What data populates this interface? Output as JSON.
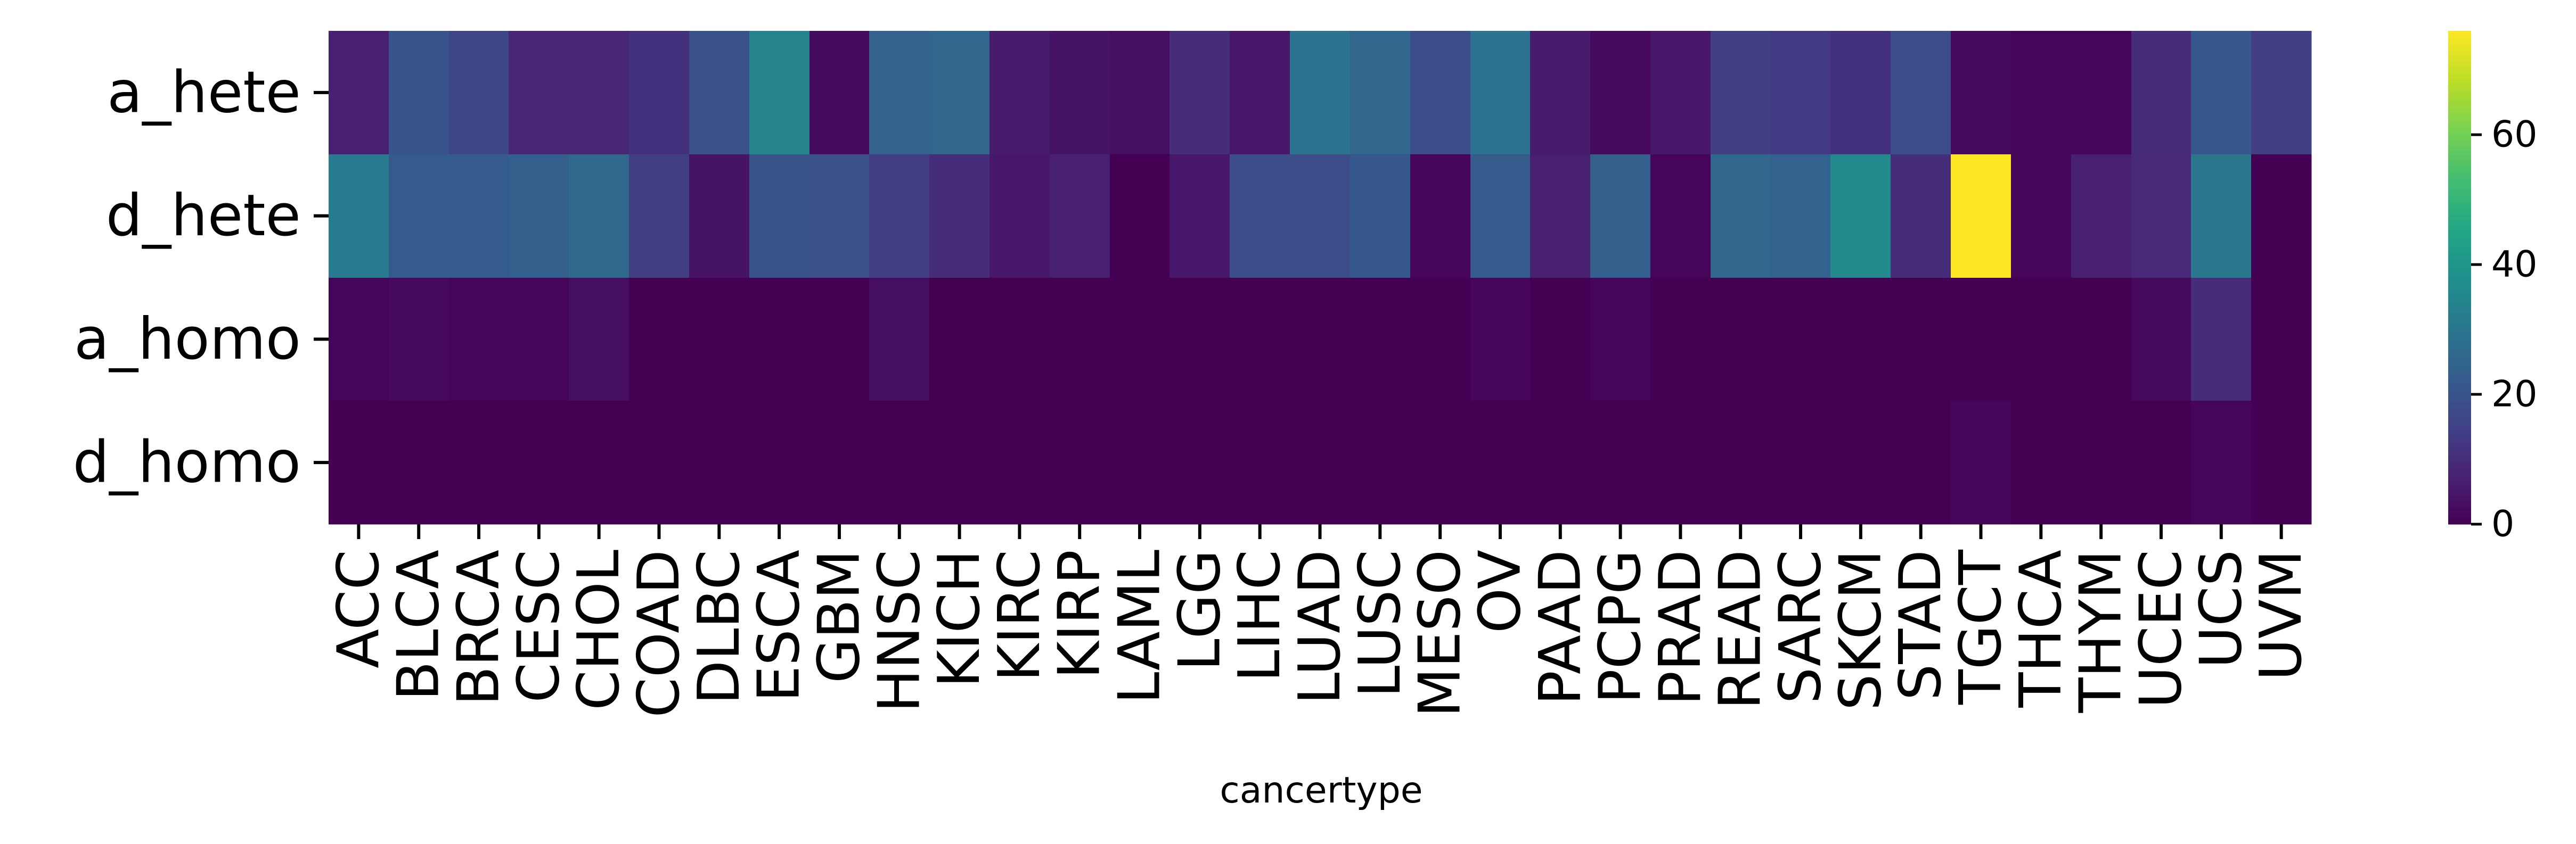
{
  "chart_data": {
    "type": "heatmap",
    "title": "",
    "xlabel": "cancertype",
    "ylabel": "",
    "rows": [
      "a_hete",
      "d_hete",
      "a_homo",
      "d_homo"
    ],
    "columns": [
      "ACC",
      "BLCA",
      "BRCA",
      "CESC",
      "CHOL",
      "COAD",
      "DLBC",
      "ESCA",
      "GBM",
      "HNSC",
      "KICH",
      "KIRC",
      "KIRP",
      "LAML",
      "LGG",
      "LIHC",
      "LUAD",
      "LUSC",
      "MESO",
      "OV",
      "PAAD",
      "PCPG",
      "PRAD",
      "READ",
      "SARC",
      "SKCM",
      "STAD",
      "TGCT",
      "THCA",
      "THYM",
      "UCEC",
      "UCS",
      "UVM"
    ],
    "values": [
      [
        7,
        20,
        16,
        8,
        8,
        11,
        19,
        34,
        2,
        24,
        25,
        6,
        4,
        3,
        10,
        5,
        29,
        25,
        18,
        29,
        6,
        2,
        5,
        14,
        13,
        11,
        18,
        2,
        1,
        1,
        10,
        21,
        14
      ],
      [
        31,
        22,
        22,
        23,
        26,
        14,
        4,
        20,
        19,
        14,
        10,
        5,
        7,
        0,
        5,
        18,
        18,
        21,
        1,
        22,
        7,
        23,
        1,
        25,
        24,
        36,
        10,
        76,
        1,
        7,
        9,
        30,
        0
      ],
      [
        1,
        2,
        1,
        1,
        3,
        0,
        0,
        0,
        0,
        3,
        0,
        0,
        0,
        0,
        0,
        0,
        0,
        0,
        0,
        1,
        0,
        1,
        0,
        0,
        0,
        0,
        0,
        0,
        0,
        0,
        2,
        10,
        0
      ],
      [
        0,
        0,
        0,
        0,
        0,
        0,
        0,
        0,
        0,
        0,
        0,
        0,
        0,
        0,
        0,
        0,
        0,
        0,
        0,
        0,
        0,
        0,
        0,
        0,
        0,
        0,
        0,
        1,
        0,
        0,
        0,
        1,
        0
      ]
    ],
    "colormap": "viridis",
    "zlim": [
      0,
      76
    ],
    "colorbar_ticks": [
      0,
      20,
      40,
      60
    ],
    "grid": false,
    "legend": "colorbar-right"
  }
}
